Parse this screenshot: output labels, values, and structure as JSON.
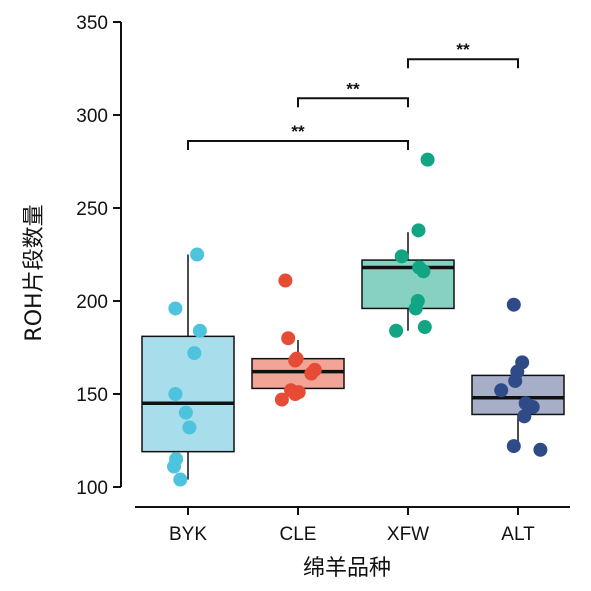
{
  "chart_data": {
    "type": "box",
    "xlabel": "绵羊品种",
    "ylabel": "ROH片段数量",
    "ylim": [
      100,
      350
    ],
    "yticks": [
      100,
      150,
      200,
      250,
      300,
      350
    ],
    "grid": false,
    "categories": [
      "BYK",
      "CLE",
      "XFW",
      "ALT"
    ],
    "groups": [
      {
        "name": "BYK",
        "color": "#4DC3DD",
        "box_fill": "#A8DDEB",
        "whisker_low": 104,
        "q1": 119,
        "median": 145,
        "q3": 181,
        "whisker_high": 225,
        "points": [
          [
            1.13,
            225
          ],
          [
            -0.18,
            196
          ],
          [
            0.17,
            184
          ],
          [
            0.09,
            172
          ],
          [
            -0.18,
            150
          ],
          [
            -0.03,
            140
          ],
          [
            0.02,
            132
          ],
          [
            -0.17,
            115
          ],
          [
            -0.2,
            111
          ],
          [
            -0.11,
            104
          ]
        ]
      },
      {
        "name": "CLE",
        "color": "#E64B35",
        "box_fill": "#F2A597",
        "whisker_low": 147,
        "q1": 153,
        "median": 162,
        "q3": 169,
        "whisker_high": 179,
        "points": [
          [
            -0.18,
            211
          ],
          [
            -0.14,
            180
          ],
          [
            -0.02,
            169
          ],
          [
            -0.04,
            168
          ],
          [
            0.24,
            163
          ],
          [
            0.19,
            161
          ],
          [
            -0.1,
            152
          ],
          [
            0.01,
            151
          ],
          [
            -0.04,
            150
          ],
          [
            -0.23,
            147
          ]
        ]
      },
      {
        "name": "XFW",
        "color": "#11A584",
        "box_fill": "#86D1C0",
        "whisker_low": 184,
        "q1": 196,
        "median": 218,
        "q3": 222,
        "whisker_high": 237,
        "points": [
          [
            0.28,
            276
          ],
          [
            0.15,
            238
          ],
          [
            -0.09,
            224
          ],
          [
            0.16,
            218
          ],
          [
            0.22,
            216
          ],
          [
            0.14,
            200
          ],
          [
            0.11,
            196
          ],
          [
            0.24,
            186
          ],
          [
            -0.17,
            184
          ]
        ]
      },
      {
        "name": "ALT",
        "color": "#2E4A87",
        "box_fill": "#A6AEC8",
        "whisker_low": 120,
        "q1": 139,
        "median": 148,
        "q3": 160,
        "whisker_high": 160,
        "points": [
          [
            -0.06,
            198
          ],
          [
            0.06,
            167
          ],
          [
            -0.01,
            162
          ],
          [
            -0.04,
            157
          ],
          [
            -0.24,
            152
          ],
          [
            0.11,
            145
          ],
          [
            0.21,
            143
          ],
          [
            0.09,
            138
          ],
          [
            -0.06,
            122
          ],
          [
            0.32,
            120
          ]
        ]
      }
    ],
    "significance": [
      {
        "from": 0,
        "to": 2,
        "y": 286,
        "label": "**"
      },
      {
        "from": 1,
        "to": 2,
        "y": 309,
        "label": "**"
      },
      {
        "from": 2,
        "to": 3,
        "y": 330,
        "label": "**"
      }
    ]
  }
}
